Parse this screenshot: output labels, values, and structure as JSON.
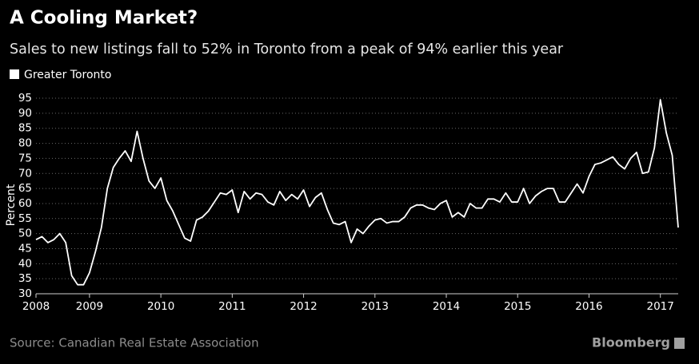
{
  "chart_data": {
    "type": "line",
    "title": "A Cooling Market?",
    "subtitle": "Sales to new listings fall to 52% in Toronto from a peak of 94% earlier this year",
    "y_axis_label": "Percent",
    "source": "Source: Canadian Real Estate Association",
    "brand": "Bloomberg",
    "legend": "top-left",
    "grid": true,
    "categories": [
      "2008",
      null,
      null,
      null,
      null,
      null,
      null,
      null,
      null,
      "2009",
      null,
      null,
      null,
      null,
      null,
      null,
      null,
      null,
      null,
      null,
      null,
      "2010",
      null,
      null,
      null,
      null,
      null,
      null,
      null,
      null,
      null,
      null,
      null,
      "2011",
      null,
      null,
      null,
      null,
      null,
      null,
      null,
      null,
      null,
      null,
      null,
      "2012",
      null,
      null,
      null,
      null,
      null,
      null,
      null,
      null,
      null,
      null,
      null,
      "2013",
      null,
      null,
      null,
      null,
      null,
      null,
      null,
      null,
      null,
      null,
      null,
      "2014",
      null,
      null,
      null,
      null,
      null,
      null,
      null,
      null,
      null,
      null,
      null,
      "2015",
      null,
      null,
      null,
      null,
      null,
      null,
      null,
      null,
      null,
      null,
      null,
      "2016",
      null,
      null,
      null,
      null,
      null,
      null,
      null,
      null,
      null,
      null,
      null,
      "2017",
      null,
      null,
      null
    ],
    "series": [
      {
        "name": "Greater Toronto",
        "color": "#ffffff",
        "values": [
          48,
          49,
          47,
          48,
          50,
          47,
          36,
          33,
          33,
          37,
          44,
          52,
          65,
          72,
          75,
          77.5,
          74,
          84,
          75,
          67.5,
          65,
          68.5,
          61,
          57.5,
          53,
          48.5,
          47.5,
          54.5,
          55.5,
          57.5,
          60.5,
          63.5,
          63,
          64.5,
          57,
          64,
          61.5,
          63.5,
          63,
          60.5,
          59.5,
          64,
          61,
          63,
          61.5,
          64.5,
          59,
          62,
          63.5,
          58,
          53.5,
          53,
          54,
          47,
          51.5,
          50,
          52.5,
          54.5,
          55,
          53.5,
          54,
          54,
          55.5,
          58.5,
          59.5,
          59.5,
          58.5,
          58,
          60,
          61,
          55.5,
          57,
          55.5,
          60,
          58.5,
          58.5,
          61.5,
          61.5,
          60.5,
          63.5,
          60.5,
          60.5,
          65,
          60,
          62.5,
          64,
          65,
          65,
          60.5,
          60.5,
          63.5,
          66.5,
          63.5,
          69,
          73,
          73.5,
          74.5,
          75.5,
          73,
          71.5,
          75,
          77,
          70,
          70.5,
          78.5,
          94.5,
          83.5,
          76,
          52
        ]
      }
    ],
    "ylim": [
      30,
      97
    ],
    "yticks": [
      30,
      35,
      40,
      45,
      50,
      55,
      60,
      65,
      70,
      75,
      80,
      85,
      90,
      95
    ]
  }
}
